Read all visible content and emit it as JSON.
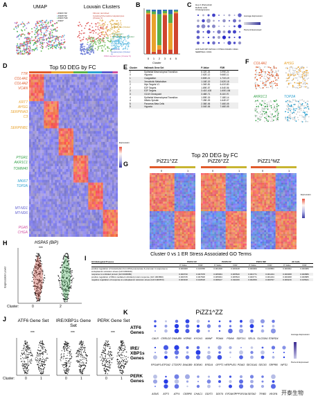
{
  "panel_labels": [
    "A",
    "B",
    "C",
    "D",
    "E",
    "F",
    "G",
    "H",
    "I",
    "J",
    "K"
  ],
  "a": {
    "title_umap": "UMAP",
    "title_louvain": "Louvain Clusters",
    "legend": [
      "PiZZ1^ZZ",
      "PiZZ6^ZZ",
      "PiZZ1^MZ",
      "PiZZ7"
    ],
    "legend_colors": [
      "#e45a5a",
      "#6bb5e0",
      "#55b24a",
      "#b07fd0"
    ],
    "louvain_labels": [
      "Fibrotic, Enriched Cytokine/Chemokine Hepatocytes (Cluster 0)",
      "Secretory Hepatocytes (Cluster 1)",
      "Pericentral / Cholangiocytes (Cluster 2)",
      "Proliferating Hepatocytes (Cluster 3)",
      "Periportal Hepatocytes (Cluster 4)",
      "PRM Hepatocytes (Cluster 5)"
    ],
    "axis_x": "UMAP1",
    "axis_y": "UMAP2"
  },
  "b": {
    "xlabel": "Cluster",
    "categories": [
      "0",
      "1",
      "2",
      "3",
      "4",
      "5"
    ],
    "series_colors": [
      "#d0452e",
      "#e8a22c",
      "#58b048",
      "#2f6eb5"
    ]
  },
  "c": {
    "legend": [
      "Hep 2 (Periportal)",
      "Definite cells",
      "Cholangiocytes"
    ],
    "genes": [
      "AFP",
      "ALB",
      "KRT",
      "APOA1",
      "CYP3A4",
      "ASGR1",
      "CDH1",
      "SERPINA1",
      "CK19"
    ],
    "avg_expression": "Average Expression",
    "percent_expressed": "Percent Expressed"
  },
  "d": {
    "title": "Top 50 DEG by FC",
    "genes": [
      "TTR",
      "COL4A1",
      "COL4A2",
      "VCAN",
      "KRT7",
      "AHSG",
      "SERPINA3",
      "C3",
      "SERPINB1",
      "PTGR1",
      "AKR1C1",
      "TOMM40",
      "MKI67",
      "TOP2A",
      "MT-ND1",
      "MT-ND6",
      "PGA5",
      "CHGA"
    ],
    "gene_colors": [
      "#e05a2a",
      "#e05a2a",
      "#e05a2a",
      "#e05a2a",
      "#e8a22c",
      "#e8a22c",
      "#e8a22c",
      "#e8a22c",
      "#e8a22c",
      "#2f9e44",
      "#2f9e44",
      "#2f9e44",
      "#2aa0d0",
      "#2aa0d0",
      "#5a5acd",
      "#5a5acd",
      "#d04fa0",
      "#d04fa0"
    ],
    "expression_label": "Expression",
    "scale": [
      "2",
      "1",
      "0",
      "-1",
      "-2"
    ]
  },
  "e": {
    "headers": [
      "Cluster",
      "Hallmark Gene Set",
      "P-Value",
      "FDR"
    ],
    "rows": [
      [
        "0",
        "Epithelial Mesenchymal Transition",
        "8.32E-26",
        "3.99E-24"
      ],
      [
        "0",
        "Hypoxia",
        "2.62E-12",
        "9.66E-11"
      ],
      [
        "1",
        "Coagulation",
        "3.80E-21",
        "1.71E-19"
      ],
      [
        "1",
        "Xenobiotic Metabolism",
        "1.16E-19",
        "2.62E-18"
      ],
      [
        "2",
        "Myc Targets V1",
        "1.34E-81",
        "6.41E-80"
      ],
      [
        "2",
        "E2F Targets",
        "1.89E-57",
        "4.54E-56"
      ],
      [
        "3",
        "E2F Targets",
        "3.41E-108",
        "1.60E-106"
      ],
      [
        "3",
        "G2-M Checkpoint",
        "3.46E-71",
        "8.11E-70"
      ],
      [
        "4",
        "Epithelial Mesenchymal Transition",
        "1.59E-15",
        "7.18E-14"
      ],
      [
        "4",
        "Mitotic Spindle",
        "7.28E-09",
        "1.64E-07"
      ],
      [
        "5",
        "Pancreas Beta Cells",
        "2.36E-06",
        "7.46E-05"
      ],
      [
        "5",
        "Hypoxia",
        "3.04E-06",
        "7.46E-05"
      ]
    ]
  },
  "f": {
    "genes": [
      "COL4A1",
      "AHSG",
      "AKR1C1",
      "TOP2A"
    ],
    "gene_colors": [
      "#e05a2a",
      "#e8a22c",
      "#2f9e44",
      "#2aa0d0"
    ],
    "axis_x": "UMAP1",
    "axis_y": "UMAP2"
  },
  "g": {
    "title": "Top 20 DEG by FC",
    "panels": [
      "PiZZ1^ZZ",
      "PiZZ6^ZZ",
      "PiZZ1^MZ"
    ],
    "cluster_labels": [
      "0",
      "1"
    ],
    "expression_label": "Expression"
  },
  "h": {
    "gene": "HSPA5 (BiP)",
    "ylabel": "Expression Level",
    "xlabel": "Cluster:",
    "categories": [
      "0",
      "2"
    ],
    "sig": "***"
  },
  "i": {
    "title": "Cluster 0 vs 1 ER Stress Associated GO Terms",
    "col_groups": [
      "PiZZ1^ZZ",
      "PiZZ6^ZZ",
      "PiZZ1^MZ",
      "All Cells"
    ],
    "col_sub": [
      "P-Value",
      "FDR"
    ],
    "row_header": "GO Biological Process",
    "rows": [
      [
        "positive regulation of transcription from RNA polymerase II promoter in response to endoplasmic reticulum stress (GO:1990440)",
        "0.000008",
        "0.019788",
        "0.001498",
        "0.026448",
        "0.000009",
        "0.016583",
        "0.000002",
        "0.000089"
      ],
      [
        "response to unfolded protein (GO:0006986)",
        "0.000730",
        "0.007978",
        "0.005064",
        "0.005540",
        "0.001771",
        "0.001234",
        "0.000368",
        "0.000886"
      ],
      [
        "positive regulation of IRE1-mediated unfolded protein response (GO:1903896)",
        "0.000745",
        "0.007848",
        "0.005064",
        "0.005543",
        "0.000771",
        "0.001234",
        "0.000368",
        "0.000885"
      ],
      [
        "negative regulation of response to endoplasmic reticulum stress (GO:1903573)",
        "0.003318",
        "0.010518",
        "0.008127",
        "0.011009",
        "0.002459",
        "0.000797",
        "0.009216",
        "0.015621"
      ]
    ]
  },
  "j": {
    "titles": [
      "ATF6 Gene Set",
      "IRE/XBP1s Gene Set",
      "PERK Gene Set"
    ],
    "xlabel": "Cluster:",
    "categories": [
      "0",
      "1"
    ],
    "sig": "***"
  },
  "k": {
    "title": "PiZZ1^ZZ",
    "groups": [
      "ATF6 Genes",
      "IRE/ XBP1s Genes",
      "PERK Genes"
    ],
    "avg_expression": "Average Expression",
    "percent_expressed": "Percent Expressed",
    "atf6_genes": [
      "CALR",
      "CRELD2",
      "DNAJB9",
      "HSPA5",
      "HYOU1",
      "MANF",
      "PDIA4",
      "PDIA6",
      "SDF2L1",
      "SEL1L",
      "SLC33A1",
      "STARD4"
    ],
    "ire_genes": [
      "ARFGAP1",
      "ATP2A2",
      "CTDSP2",
      "DNAJB9",
      "EDEM1",
      "ERDJ4",
      "GFPT1",
      "HERPUD1",
      "PDIA3",
      "SEC61A1",
      "SEC63",
      "SRPRB",
      "WFS1"
    ],
    "perk_genes": [
      "ASNS",
      "ATF3",
      "ATF4",
      "CEBPB",
      "CHAC1",
      "DDIT3",
      "DDIT4",
      "EIF2AK3",
      "PPP1R15A",
      "SESN2",
      "TRIB3",
      "VEGFA"
    ]
  },
  "watermark": "开泰生物"
}
